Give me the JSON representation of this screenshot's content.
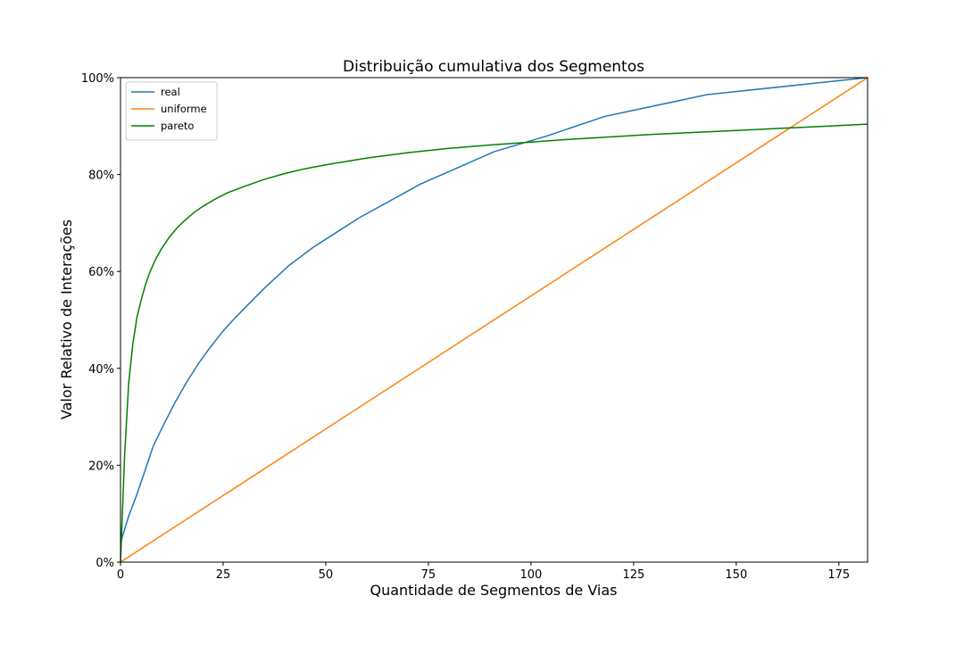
{
  "chart_data": {
    "type": "line",
    "title": "Distribuição cumulativa dos Segmentos",
    "xlabel": "Quantidade de Segmentos de Vias",
    "ylabel": "Valor Relativo de Interações",
    "xlim": [
      0,
      182
    ],
    "ylim": [
      0,
      1
    ],
    "xticks": [
      0,
      25,
      50,
      75,
      100,
      125,
      150,
      175
    ],
    "xtick_labels": [
      "0",
      "25",
      "50",
      "75",
      "100",
      "125",
      "150",
      "175"
    ],
    "yticks": [
      0,
      0.2,
      0.4,
      0.6,
      0.8,
      1.0
    ],
    "ytick_labels": [
      "0%",
      "20%",
      "40%",
      "60%",
      "80%",
      "100%"
    ],
    "grid": false,
    "legend_position": "upper-left",
    "series": [
      {
        "name": "real",
        "color": "#1f77b4",
        "x": [
          0,
          2,
          4,
          6,
          8,
          10,
          13,
          16,
          19,
          22,
          25,
          28,
          33,
          35,
          41,
          47,
          58,
          73,
          91,
          104,
          118,
          143,
          182
        ],
        "y": [
          0.04,
          0.095,
          0.14,
          0.19,
          0.24,
          0.275,
          0.325,
          0.37,
          0.41,
          0.445,
          0.477,
          0.505,
          0.548,
          0.565,
          0.612,
          0.65,
          0.71,
          0.78,
          0.847,
          0.88,
          0.92,
          0.965,
          1.0
        ]
      },
      {
        "name": "uniforme",
        "color": "#ff7f0e",
        "x": [
          0,
          182
        ],
        "y": [
          0.0,
          1.0
        ]
      },
      {
        "name": "pareto",
        "color": "#008000",
        "x": [
          0,
          1,
          2,
          3,
          4,
          5,
          6,
          7,
          8,
          9,
          10,
          12,
          14,
          16,
          18,
          20,
          23,
          26,
          30,
          35,
          40,
          45,
          50,
          60,
          70,
          80,
          90,
          100,
          110,
          120,
          130,
          140,
          150,
          160,
          170,
          182
        ],
        "y": [
          0.0,
          0.22,
          0.37,
          0.45,
          0.505,
          0.54,
          0.57,
          0.595,
          0.615,
          0.632,
          0.647,
          0.672,
          0.692,
          0.708,
          0.722,
          0.734,
          0.749,
          0.762,
          0.775,
          0.79,
          0.802,
          0.812,
          0.82,
          0.834,
          0.845,
          0.854,
          0.861,
          0.867,
          0.873,
          0.878,
          0.883,
          0.887,
          0.891,
          0.895,
          0.899,
          0.904
        ]
      }
    ]
  }
}
